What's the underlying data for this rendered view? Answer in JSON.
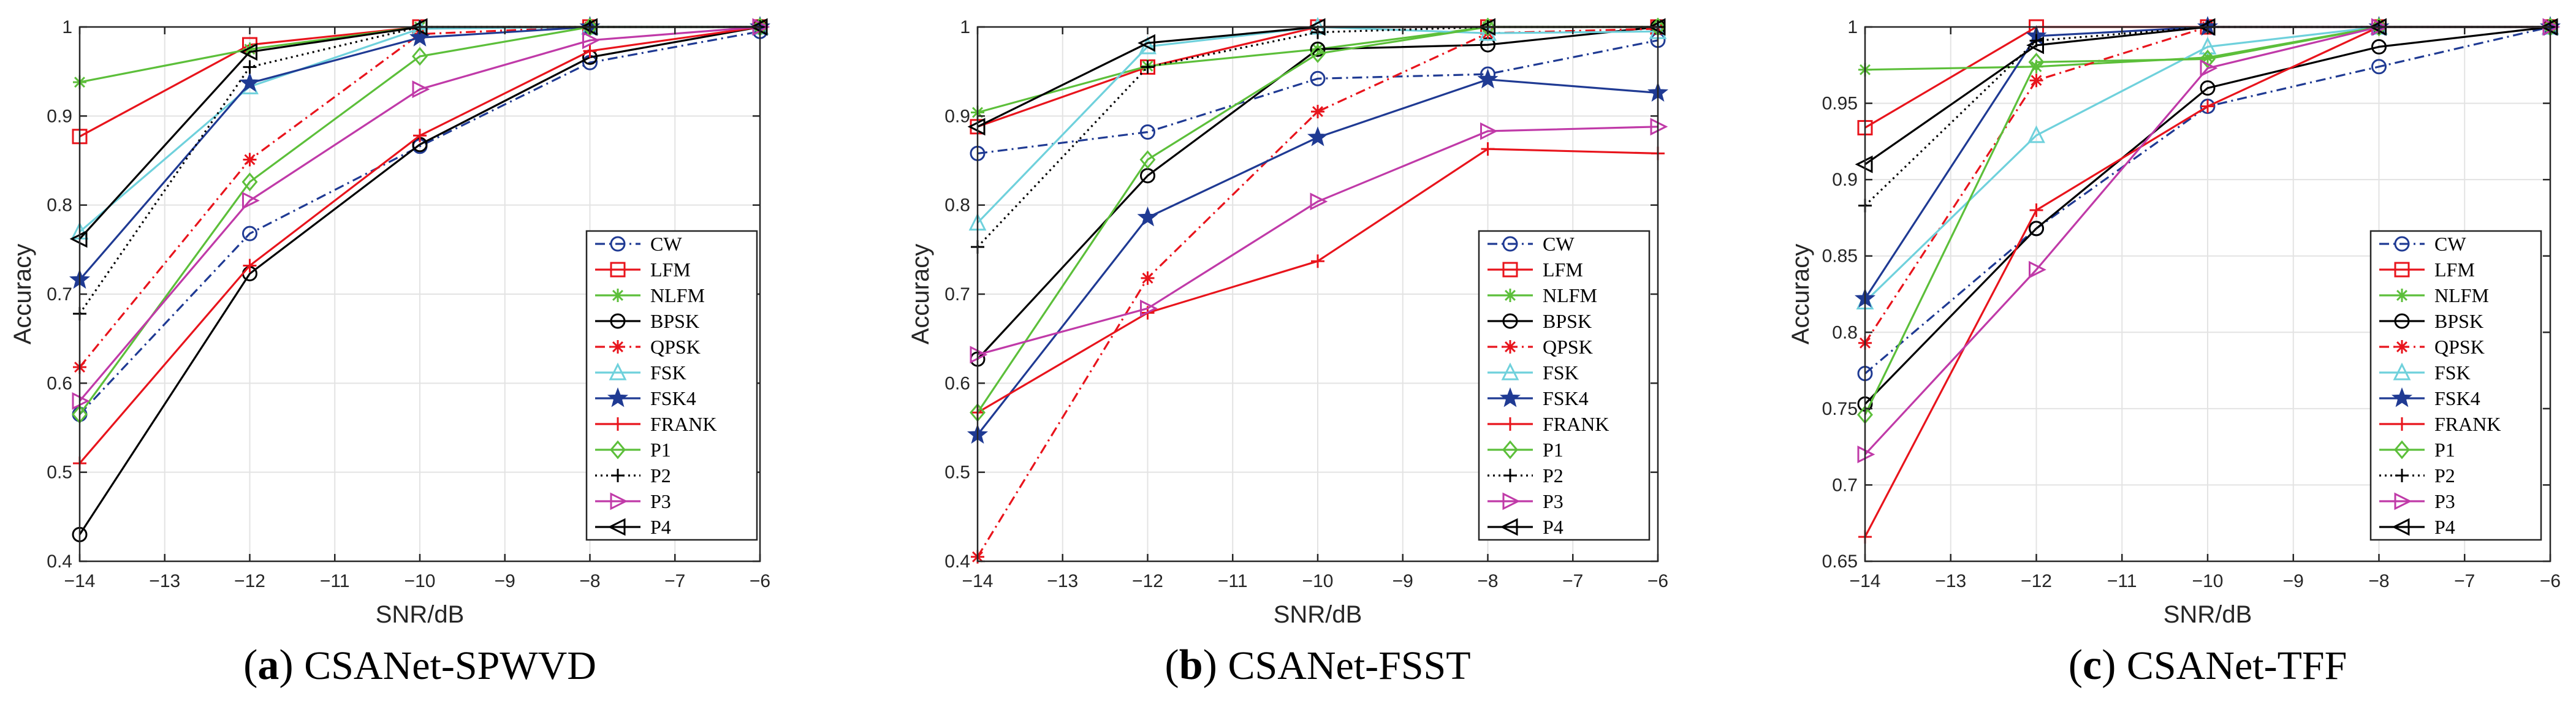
{
  "chart_data": [
    {
      "type": "line",
      "caption_letter": "a",
      "caption_text": "CSANet-SPWVD",
      "xlabel": "SNR/dB",
      "ylabel": "Accuracy",
      "xlim": [
        -14,
        -6
      ],
      "ylim": [
        0.4,
        1.0
      ],
      "xticks": [
        -14,
        -13,
        -12,
        -11,
        -10,
        -9,
        -8,
        -7,
        -6
      ],
      "xtick_labels": [
        "−14",
        "−13",
        "−12",
        "−11",
        "−10",
        "−9",
        "−8",
        "−7",
        "−6"
      ],
      "yticks": [
        0.4,
        0.5,
        0.6,
        0.7,
        0.8,
        0.9,
        1.0
      ],
      "ytick_labels": [
        "0.4",
        "0.5",
        "0.6",
        "0.7",
        "0.8",
        "0.9",
        "1"
      ],
      "grid": true,
      "legend_location": "bottom-right",
      "x": [
        -14,
        -12,
        -10,
        -8,
        -6
      ],
      "series": [
        {
          "name": "CW",
          "color": "#1f3a93",
          "dash": "dashdot",
          "marker": "circle",
          "values": [
            0.565,
            0.768,
            0.866,
            0.96,
            0.995
          ]
        },
        {
          "name": "LFM",
          "color": "#e8141c",
          "dash": "solid",
          "marker": "square",
          "values": [
            0.877,
            0.98,
            1.0,
            1.0,
            1.0
          ]
        },
        {
          "name": "NLFM",
          "color": "#5cbf3a",
          "dash": "solid",
          "marker": "asterisk",
          "values": [
            0.938,
            0.975,
            1.0,
            1.0,
            1.0
          ]
        },
        {
          "name": "BPSK",
          "color": "#000000",
          "dash": "solid",
          "marker": "circle",
          "values": [
            0.43,
            0.723,
            0.868,
            0.966,
            1.0
          ]
        },
        {
          "name": "QPSK",
          "color": "#e8141c",
          "dash": "dashdot",
          "marker": "asterisk",
          "values": [
            0.618,
            0.851,
            0.992,
            1.0,
            1.0
          ]
        },
        {
          "name": "FSK",
          "color": "#6fd1dc",
          "dash": "solid",
          "marker": "triangle-up",
          "values": [
            0.77,
            0.933,
            0.998,
            1.0,
            1.0
          ]
        },
        {
          "name": "FSK4",
          "color": "#1f3a93",
          "dash": "solid",
          "marker": "star",
          "values": [
            0.716,
            0.937,
            0.988,
            1.0,
            1.0
          ]
        },
        {
          "name": "FRANK",
          "color": "#e8141c",
          "dash": "solid",
          "marker": "plus",
          "values": [
            0.51,
            0.732,
            0.878,
            0.973,
            1.0
          ]
        },
        {
          "name": "P1",
          "color": "#5cbf3a",
          "dash": "solid",
          "marker": "diamond",
          "values": [
            0.565,
            0.826,
            0.967,
            1.0,
            1.0
          ]
        },
        {
          "name": "P2",
          "color": "#000000",
          "dash": "dotted",
          "marker": "plus",
          "values": [
            0.678,
            0.955,
            1.0,
            1.0,
            1.0
          ]
        },
        {
          "name": "P3",
          "color": "#c03aa8",
          "dash": "solid",
          "marker": "triangle-right",
          "values": [
            0.58,
            0.805,
            0.93,
            0.985,
            1.0
          ]
        },
        {
          "name": "P4",
          "color": "#000000",
          "dash": "solid",
          "marker": "triangle-left",
          "values": [
            0.762,
            0.972,
            1.0,
            1.0,
            1.0
          ]
        }
      ]
    },
    {
      "type": "line",
      "caption_letter": "b",
      "caption_text": "CSANet-FSST",
      "xlabel": "SNR/dB",
      "ylabel": "Accuracy",
      "xlim": [
        -14,
        -6
      ],
      "ylim": [
        0.4,
        1.0
      ],
      "xticks": [
        -14,
        -13,
        -12,
        -11,
        -10,
        -9,
        -8,
        -7,
        -6
      ],
      "xtick_labels": [
        "−14",
        "−13",
        "−12",
        "−11",
        "−10",
        "−9",
        "−8",
        "−7",
        "−6"
      ],
      "yticks": [
        0.4,
        0.5,
        0.6,
        0.7,
        0.8,
        0.9,
        1.0
      ],
      "ytick_labels": [
        "0.4",
        "0.5",
        "0.6",
        "0.7",
        "0.8",
        "0.9",
        "1"
      ],
      "grid": true,
      "legend_location": "bottom-right",
      "x": [
        -14,
        -12,
        -10,
        -8,
        -6
      ],
      "series": [
        {
          "name": "CW",
          "color": "#1f3a93",
          "dash": "dashdot",
          "marker": "circle",
          "values": [
            0.858,
            0.882,
            0.942,
            0.947,
            0.985
          ]
        },
        {
          "name": "LFM",
          "color": "#e8141c",
          "dash": "solid",
          "marker": "square",
          "values": [
            0.888,
            0.955,
            1.0,
            1.0,
            1.0
          ]
        },
        {
          "name": "NLFM",
          "color": "#5cbf3a",
          "dash": "solid",
          "marker": "asterisk",
          "values": [
            0.904,
            0.956,
            0.975,
            1.0,
            1.0
          ]
        },
        {
          "name": "BPSK",
          "color": "#000000",
          "dash": "solid",
          "marker": "circle",
          "values": [
            0.627,
            0.833,
            0.975,
            0.98,
            1.0
          ]
        },
        {
          "name": "QPSK",
          "color": "#e8141c",
          "dash": "dashdot",
          "marker": "asterisk",
          "values": [
            0.405,
            0.718,
            0.905,
            0.993,
            0.998
          ]
        },
        {
          "name": "FSK",
          "color": "#6fd1dc",
          "dash": "solid",
          "marker": "triangle-up",
          "values": [
            0.78,
            0.978,
            1.0,
            0.993,
            0.995
          ]
        },
        {
          "name": "FSK4",
          "color": "#1f3a93",
          "dash": "solid",
          "marker": "star",
          "values": [
            0.542,
            0.786,
            0.876,
            0.941,
            0.926
          ]
        },
        {
          "name": "FRANK",
          "color": "#e8141c",
          "dash": "solid",
          "marker": "plus",
          "values": [
            0.567,
            0.679,
            0.737,
            0.863,
            0.858
          ]
        },
        {
          "name": "P1",
          "color": "#5cbf3a",
          "dash": "solid",
          "marker": "diamond",
          "values": [
            0.567,
            0.851,
            0.97,
            1.0,
            1.0
          ]
        },
        {
          "name": "P2",
          "color": "#000000",
          "dash": "dotted",
          "marker": "plus",
          "values": [
            0.753,
            0.955,
            0.994,
            1.0,
            1.0
          ]
        },
        {
          "name": "P3",
          "color": "#c03aa8",
          "dash": "solid",
          "marker": "triangle-right",
          "values": [
            0.632,
            0.684,
            0.804,
            0.883,
            0.888
          ]
        },
        {
          "name": "P4",
          "color": "#000000",
          "dash": "solid",
          "marker": "triangle-left",
          "values": [
            0.888,
            0.982,
            1.0,
            1.0,
            1.0
          ]
        }
      ]
    },
    {
      "type": "line",
      "caption_letter": "c",
      "caption_text": "CSANet-TFF",
      "xlabel": "SNR/dB",
      "ylabel": "Accuracy",
      "xlim": [
        -14,
        -6
      ],
      "ylim": [
        0.65,
        1.0
      ],
      "xticks": [
        -14,
        -13,
        -12,
        -11,
        -10,
        -9,
        -8,
        -7,
        -6
      ],
      "xtick_labels": [
        "−14",
        "−13",
        "−12",
        "−11",
        "−10",
        "−9",
        "−8",
        "−7",
        "−6"
      ],
      "yticks": [
        0.65,
        0.7,
        0.75,
        0.8,
        0.85,
        0.9,
        0.95,
        1.0
      ],
      "ytick_labels": [
        "0.65",
        "0.7",
        "0.75",
        "0.8",
        "0.85",
        "0.9",
        "0.95",
        "1"
      ],
      "grid": true,
      "legend_location": "bottom-right",
      "x": [
        -14,
        -12,
        -10,
        -8,
        -6
      ],
      "series": [
        {
          "name": "CW",
          "color": "#1f3a93",
          "dash": "dashdot",
          "marker": "circle",
          "values": [
            0.773,
            0.868,
            0.948,
            0.974,
            1.0
          ]
        },
        {
          "name": "LFM",
          "color": "#e8141c",
          "dash": "solid",
          "marker": "square",
          "values": [
            0.934,
            1.0,
            1.0,
            1.0,
            1.0
          ]
        },
        {
          "name": "NLFM",
          "color": "#5cbf3a",
          "dash": "solid",
          "marker": "asterisk",
          "values": [
            0.972,
            0.974,
            0.98,
            1.0,
            1.0
          ]
        },
        {
          "name": "BPSK",
          "color": "#000000",
          "dash": "solid",
          "marker": "circle",
          "values": [
            0.753,
            0.868,
            0.96,
            0.987,
            1.0
          ]
        },
        {
          "name": "QPSK",
          "color": "#e8141c",
          "dash": "dashdot",
          "marker": "asterisk",
          "values": [
            0.793,
            0.965,
            1.0,
            1.0,
            1.0
          ]
        },
        {
          "name": "FSK",
          "color": "#6fd1dc",
          "dash": "solid",
          "marker": "triangle-up",
          "values": [
            0.82,
            0.929,
            0.987,
            1.0,
            1.0
          ]
        },
        {
          "name": "FSK4",
          "color": "#1f3a93",
          "dash": "solid",
          "marker": "star",
          "values": [
            0.822,
            0.994,
            1.0,
            1.0,
            1.0
          ]
        },
        {
          "name": "FRANK",
          "color": "#e8141c",
          "dash": "solid",
          "marker": "plus",
          "values": [
            0.666,
            0.88,
            0.948,
            1.0,
            1.0
          ]
        },
        {
          "name": "P1",
          "color": "#5cbf3a",
          "dash": "solid",
          "marker": "diamond",
          "values": [
            0.746,
            0.977,
            0.979,
            1.0,
            1.0
          ]
        },
        {
          "name": "P2",
          "color": "#000000",
          "dash": "dotted",
          "marker": "plus",
          "values": [
            0.883,
            0.991,
            1.0,
            1.0,
            1.0
          ]
        },
        {
          "name": "P3",
          "color": "#c03aa8",
          "dash": "solid",
          "marker": "triangle-right",
          "values": [
            0.72,
            0.841,
            0.973,
            1.0,
            1.0
          ]
        },
        {
          "name": "P4",
          "color": "#000000",
          "dash": "solid",
          "marker": "triangle-left",
          "values": [
            0.91,
            0.988,
            1.0,
            1.0,
            1.0
          ]
        }
      ]
    }
  ]
}
